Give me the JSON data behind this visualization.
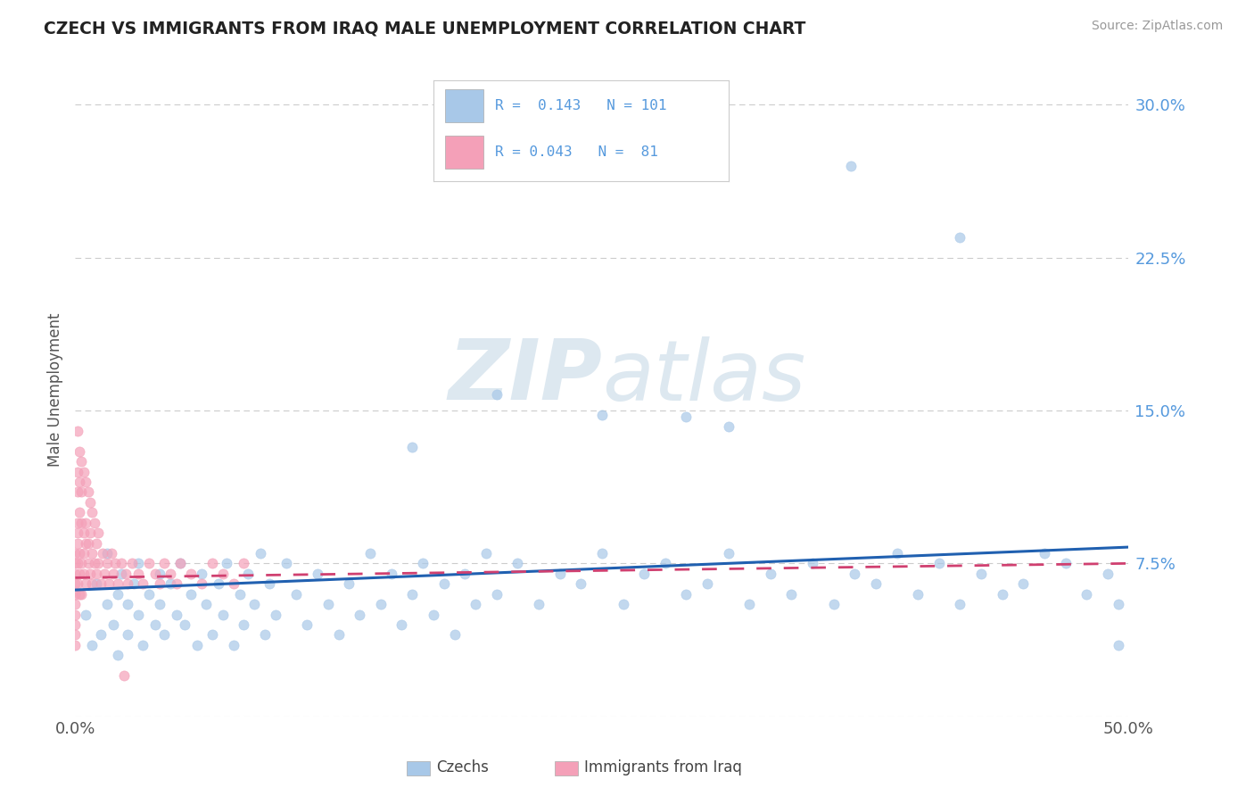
{
  "title": "CZECH VS IMMIGRANTS FROM IRAQ MALE UNEMPLOYMENT CORRELATION CHART",
  "source": "Source: ZipAtlas.com",
  "ylabel": "Male Unemployment",
  "xlim": [
    0.0,
    0.5
  ],
  "ylim": [
    0.0,
    0.32
  ],
  "yticks": [
    0.0,
    0.075,
    0.15,
    0.225,
    0.3
  ],
  "ytick_labels_right": [
    "",
    "7.5%",
    "15.0%",
    "22.5%",
    "30.0%"
  ],
  "xticks": [
    0.0,
    0.5
  ],
  "xtick_labels": [
    "0.0%",
    "50.0%"
  ],
  "color_czech": "#a8c8e8",
  "color_iraq": "#f4a0b8",
  "trendline_czech": "#2060b0",
  "trendline_iraq": "#d04070",
  "background_color": "#ffffff",
  "watermark_color": "#dde8f0",
  "czech_trendline_x0": 0.0,
  "czech_trendline_y0": 0.062,
  "czech_trendline_x1": 0.5,
  "czech_trendline_y1": 0.083,
  "iraq_trendline_x0": 0.0,
  "iraq_trendline_y0": 0.068,
  "iraq_trendline_x1": 0.5,
  "iraq_trendline_y1": 0.075,
  "czechs_x": [
    0.005,
    0.008,
    0.01,
    0.012,
    0.015,
    0.015,
    0.018,
    0.02,
    0.02,
    0.022,
    0.025,
    0.025,
    0.028,
    0.03,
    0.03,
    0.032,
    0.035,
    0.038,
    0.04,
    0.04,
    0.042,
    0.045,
    0.048,
    0.05,
    0.052,
    0.055,
    0.058,
    0.06,
    0.062,
    0.065,
    0.068,
    0.07,
    0.072,
    0.075,
    0.078,
    0.08,
    0.082,
    0.085,
    0.088,
    0.09,
    0.092,
    0.095,
    0.1,
    0.105,
    0.11,
    0.115,
    0.12,
    0.125,
    0.13,
    0.135,
    0.14,
    0.145,
    0.15,
    0.155,
    0.16,
    0.165,
    0.17,
    0.175,
    0.18,
    0.185,
    0.19,
    0.195,
    0.2,
    0.21,
    0.22,
    0.23,
    0.24,
    0.25,
    0.26,
    0.27,
    0.28,
    0.29,
    0.3,
    0.31,
    0.32,
    0.33,
    0.34,
    0.35,
    0.36,
    0.37,
    0.38,
    0.39,
    0.4,
    0.41,
    0.42,
    0.43,
    0.44,
    0.45,
    0.46,
    0.47,
    0.48,
    0.49,
    0.495,
    0.368,
    0.42,
    0.2,
    0.25,
    0.16,
    0.29,
    0.31,
    0.495
  ],
  "czechs_y": [
    0.05,
    0.035,
    0.065,
    0.04,
    0.055,
    0.08,
    0.045,
    0.06,
    0.03,
    0.07,
    0.055,
    0.04,
    0.065,
    0.05,
    0.075,
    0.035,
    0.06,
    0.045,
    0.07,
    0.055,
    0.04,
    0.065,
    0.05,
    0.075,
    0.045,
    0.06,
    0.035,
    0.07,
    0.055,
    0.04,
    0.065,
    0.05,
    0.075,
    0.035,
    0.06,
    0.045,
    0.07,
    0.055,
    0.08,
    0.04,
    0.065,
    0.05,
    0.075,
    0.06,
    0.045,
    0.07,
    0.055,
    0.04,
    0.065,
    0.05,
    0.08,
    0.055,
    0.07,
    0.045,
    0.06,
    0.075,
    0.05,
    0.065,
    0.04,
    0.07,
    0.055,
    0.08,
    0.06,
    0.075,
    0.055,
    0.07,
    0.065,
    0.08,
    0.055,
    0.07,
    0.075,
    0.06,
    0.065,
    0.08,
    0.055,
    0.07,
    0.06,
    0.075,
    0.055,
    0.07,
    0.065,
    0.08,
    0.06,
    0.075,
    0.055,
    0.07,
    0.06,
    0.065,
    0.08,
    0.075,
    0.06,
    0.07,
    0.055,
    0.27,
    0.235,
    0.158,
    0.148,
    0.132,
    0.147,
    0.142,
    0.035
  ],
  "iraq_x": [
    0.0,
    0.0,
    0.0,
    0.0,
    0.0,
    0.0,
    0.0,
    0.0,
    0.0,
    0.0,
    0.001,
    0.001,
    0.001,
    0.001,
    0.001,
    0.001,
    0.001,
    0.002,
    0.002,
    0.002,
    0.002,
    0.002,
    0.003,
    0.003,
    0.003,
    0.003,
    0.004,
    0.004,
    0.004,
    0.005,
    0.005,
    0.005,
    0.006,
    0.006,
    0.007,
    0.007,
    0.008,
    0.008,
    0.009,
    0.01,
    0.01,
    0.011,
    0.012,
    0.013,
    0.014,
    0.015,
    0.016,
    0.017,
    0.018,
    0.019,
    0.02,
    0.022,
    0.024,
    0.025,
    0.027,
    0.03,
    0.032,
    0.035,
    0.038,
    0.04,
    0.042,
    0.045,
    0.048,
    0.05,
    0.055,
    0.06,
    0.065,
    0.07,
    0.075,
    0.08,
    0.001,
    0.002,
    0.003,
    0.004,
    0.005,
    0.006,
    0.007,
    0.008,
    0.009,
    0.011,
    0.023
  ],
  "iraq_y": [
    0.065,
    0.045,
    0.075,
    0.055,
    0.04,
    0.08,
    0.06,
    0.05,
    0.07,
    0.035,
    0.11,
    0.09,
    0.12,
    0.075,
    0.095,
    0.085,
    0.065,
    0.1,
    0.08,
    0.06,
    0.115,
    0.07,
    0.095,
    0.075,
    0.11,
    0.06,
    0.09,
    0.07,
    0.08,
    0.085,
    0.065,
    0.095,
    0.075,
    0.085,
    0.07,
    0.09,
    0.08,
    0.065,
    0.075,
    0.085,
    0.07,
    0.075,
    0.065,
    0.08,
    0.07,
    0.075,
    0.065,
    0.08,
    0.07,
    0.075,
    0.065,
    0.075,
    0.07,
    0.065,
    0.075,
    0.07,
    0.065,
    0.075,
    0.07,
    0.065,
    0.075,
    0.07,
    0.065,
    0.075,
    0.07,
    0.065,
    0.075,
    0.07,
    0.065,
    0.075,
    0.14,
    0.13,
    0.125,
    0.12,
    0.115,
    0.11,
    0.105,
    0.1,
    0.095,
    0.09,
    0.02
  ]
}
